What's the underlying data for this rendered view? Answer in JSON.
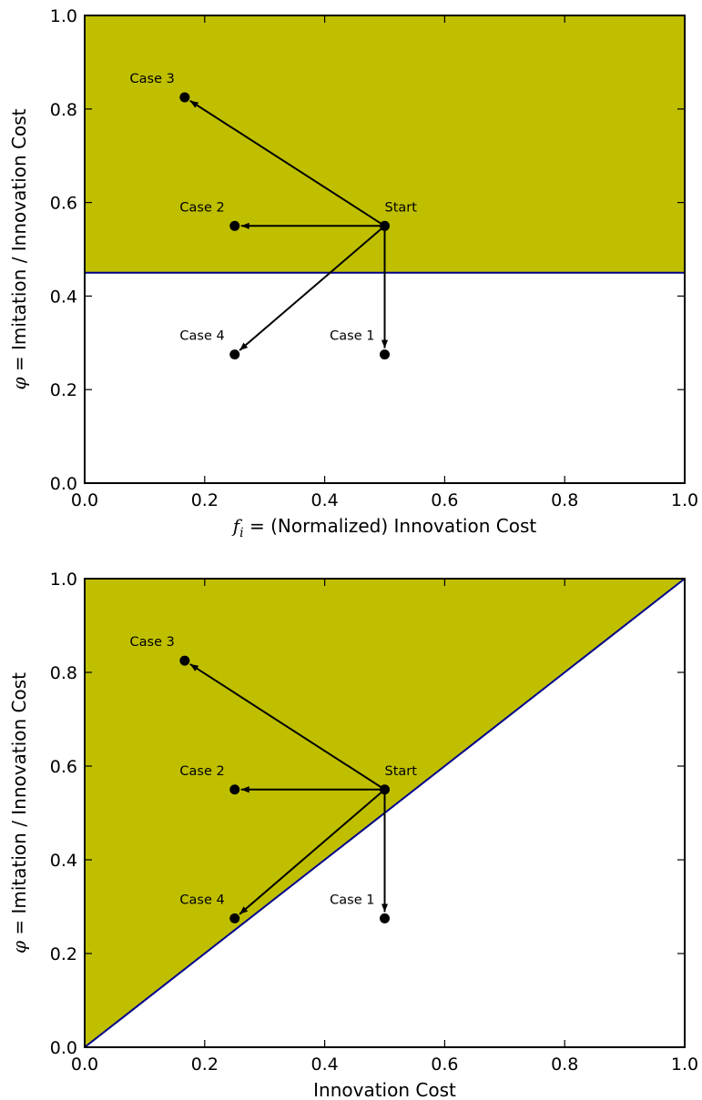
{
  "colors": {
    "region_fill": "#bfbf00",
    "boundary_line": "#00008b",
    "marker": "#000000"
  },
  "chart_data": [
    {
      "type": "scatter",
      "region": "above",
      "boundary": [
        [
          0,
          0.45
        ],
        [
          1,
          0.45
        ]
      ],
      "xlim": [
        0,
        1
      ],
      "ylim": [
        0,
        1
      ],
      "xticks": [
        "0.0",
        "0.2",
        "0.4",
        "0.6",
        "0.8",
        "1.0"
      ],
      "yticks": [
        "0.0",
        "0.2",
        "0.4",
        "0.6",
        "0.8",
        "1.0"
      ],
      "xlabel_symbol": "f",
      "xlabel_sub": "i",
      "xlabel_rest": " = (Normalized) Innovation Cost",
      "ylabel_symbol": "φ",
      "ylabel_rest": " = Imitation / Innovation Cost",
      "points": [
        {
          "label": "Start",
          "x": 0.5,
          "y": 0.55
        },
        {
          "label": "Case 1",
          "x": 0.5,
          "y": 0.275
        },
        {
          "label": "Case 2",
          "x": 0.25,
          "y": 0.55
        },
        {
          "label": "Case 3",
          "x": 0.1667,
          "y": 0.825
        },
        {
          "label": "Case 4",
          "x": 0.25,
          "y": 0.275
        }
      ],
      "arrows_from": "Start",
      "arrows_to": [
        "Case 1",
        "Case 2",
        "Case 3",
        "Case 4"
      ]
    },
    {
      "type": "scatter",
      "region": "above",
      "boundary": [
        [
          0,
          0
        ],
        [
          1,
          1
        ]
      ],
      "xlim": [
        0,
        1
      ],
      "ylim": [
        0,
        1
      ],
      "xticks": [
        "0.0",
        "0.2",
        "0.4",
        "0.6",
        "0.8",
        "1.0"
      ],
      "yticks": [
        "0.0",
        "0.2",
        "0.4",
        "0.6",
        "0.8",
        "1.0"
      ],
      "xlabel_symbol": "",
      "xlabel_sub": "",
      "xlabel_rest": "Innovation Cost",
      "ylabel_symbol": "φ",
      "ylabel_rest": " = Imitation / Innovation Cost",
      "points": [
        {
          "label": "Start",
          "x": 0.5,
          "y": 0.55
        },
        {
          "label": "Case 1",
          "x": 0.5,
          "y": 0.275
        },
        {
          "label": "Case 2",
          "x": 0.25,
          "y": 0.55
        },
        {
          "label": "Case 3",
          "x": 0.1667,
          "y": 0.825
        },
        {
          "label": "Case 4",
          "x": 0.25,
          "y": 0.275
        }
      ],
      "arrows_from": "Start",
      "arrows_to": [
        "Case 1",
        "Case 2",
        "Case 3",
        "Case 4"
      ]
    }
  ]
}
